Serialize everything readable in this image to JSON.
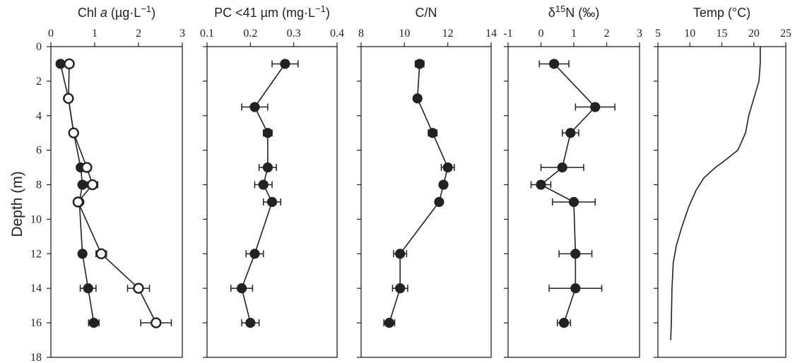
{
  "y_axis": {
    "label": "Depth (m)",
    "range": [
      0,
      18
    ],
    "ticks": [
      "0",
      "2",
      "4",
      "6",
      "8",
      "10",
      "12",
      "14",
      "16",
      "18"
    ]
  },
  "panels": [
    {
      "title_main": "Chl ",
      "title_ital": "a",
      "title_rest": " (µg·L",
      "title_sup": "−1",
      "title_end": ")"
    },
    {
      "title_main": "PC <41 µm (mg·L",
      "title_ital": "",
      "title_rest": "",
      "title_sup": "−1",
      "title_end": ")"
    },
    {
      "title_main": "C/N",
      "title_ital": "",
      "title_rest": "",
      "title_sup": "",
      "title_end": ""
    },
    {
      "title_main": "δ",
      "title_ital": "",
      "title_rest": "",
      "title_sup": "15",
      "title_end": "N (‰)"
    },
    {
      "title_main": "Temp (°C)",
      "title_ital": "",
      "title_rest": "",
      "title_sup": "",
      "title_end": ""
    }
  ],
  "chart_data": [
    {
      "type": "line",
      "title": "Chl a (µg·L−1)",
      "ylabel": "Depth (m)",
      "xlim": [
        0,
        3
      ],
      "xticks": [
        "0",
        "1",
        "2",
        "3"
      ],
      "series": [
        {
          "marker": "filled",
          "points": [
            [
              0.22,
              1
            ],
            [
              0.4,
              3
            ],
            [
              0.52,
              5
            ],
            [
              0.68,
              7
            ],
            [
              0.72,
              8
            ],
            [
              0.65,
              9
            ],
            [
              0.72,
              12
            ],
            [
              0.85,
              14
            ],
            [
              0.98,
              16
            ]
          ],
          "xerr": [
            0.0,
            0.0,
            0.0,
            0.05,
            0.05,
            0.0,
            0.05,
            0.18,
            0.12
          ]
        },
        {
          "marker": "open",
          "points": [
            [
              0.42,
              1
            ],
            [
              0.4,
              3
            ],
            [
              0.52,
              5
            ],
            [
              0.82,
              7
            ],
            [
              0.95,
              8
            ],
            [
              0.62,
              9
            ],
            [
              1.15,
              12
            ],
            [
              2.0,
              14
            ],
            [
              2.4,
              16
            ]
          ],
          "xerr": [
            0.0,
            0.0,
            0.0,
            0.08,
            0.12,
            0.0,
            0.12,
            0.25,
            0.35
          ]
        }
      ]
    },
    {
      "type": "line",
      "title": "PC <41 µm (mg·L−1)",
      "xlim": [
        0.1,
        0.4
      ],
      "xticks": [
        "0.1",
        "0.2",
        "0.3",
        "0.4"
      ],
      "series": [
        {
          "marker": "filled",
          "points": [
            [
              0.28,
              1
            ],
            [
              0.21,
              3.5
            ],
            [
              0.24,
              5
            ],
            [
              0.24,
              7
            ],
            [
              0.23,
              8
            ],
            [
              0.25,
              9
            ],
            [
              0.21,
              12
            ],
            [
              0.18,
              14
            ],
            [
              0.2,
              16
            ]
          ],
          "xerr": [
            0.03,
            0.03,
            0.01,
            0.02,
            0.02,
            0.02,
            0.02,
            0.025,
            0.02
          ]
        }
      ]
    },
    {
      "type": "line",
      "title": "C/N",
      "xlim": [
        8,
        14
      ],
      "xticks": [
        "8",
        "10",
        "12",
        "14"
      ],
      "series": [
        {
          "marker": "filled",
          "points": [
            [
              10.7,
              1
            ],
            [
              10.6,
              3
            ],
            [
              11.3,
              5
            ],
            [
              12.0,
              7
            ],
            [
              11.8,
              8
            ],
            [
              11.6,
              9
            ],
            [
              9.8,
              12
            ],
            [
              9.8,
              14
            ],
            [
              9.3,
              16
            ]
          ],
          "xerr": [
            0.2,
            0.15,
            0.2,
            0.3,
            0.15,
            0.0,
            0.3,
            0.35,
            0.25
          ]
        }
      ]
    },
    {
      "type": "line",
      "title": "δ15N (‰)",
      "xlim": [
        -1,
        3
      ],
      "xticks": [
        "-1",
        "0",
        "1",
        "2",
        "3"
      ],
      "series": [
        {
          "marker": "filled",
          "points": [
            [
              0.4,
              1
            ],
            [
              1.65,
              3.5
            ],
            [
              0.9,
              5
            ],
            [
              0.65,
              7
            ],
            [
              0.0,
              8
            ],
            [
              1.0,
              9
            ],
            [
              1.05,
              12
            ],
            [
              1.05,
              14
            ],
            [
              0.7,
              16
            ]
          ],
          "xerr": [
            0.45,
            0.6,
            0.25,
            0.65,
            0.3,
            0.65,
            0.5,
            0.8,
            0.2
          ]
        }
      ]
    },
    {
      "type": "line",
      "title": "Temp (°C)",
      "xlim": [
        5,
        25
      ],
      "xticks": [
        "5",
        "10",
        "15",
        "20",
        "25"
      ],
      "series": [
        {
          "marker": "none",
          "points": [
            [
              21.0,
              0
            ],
            [
              21.0,
              1
            ],
            [
              20.8,
              2
            ],
            [
              20.0,
              3
            ],
            [
              19.2,
              4
            ],
            [
              18.7,
              5
            ],
            [
              18.1,
              5.5
            ],
            [
              17.5,
              6
            ],
            [
              15.8,
              6.5
            ],
            [
              14.0,
              7
            ],
            [
              12.2,
              7.6
            ],
            [
              11.0,
              8.3
            ],
            [
              9.8,
              9.3
            ],
            [
              8.7,
              10.5
            ],
            [
              7.9,
              11.5
            ],
            [
              7.4,
              12.5
            ],
            [
              7.2,
              14
            ],
            [
              7.1,
              16
            ],
            [
              7.0,
              17
            ]
          ]
        }
      ]
    }
  ]
}
